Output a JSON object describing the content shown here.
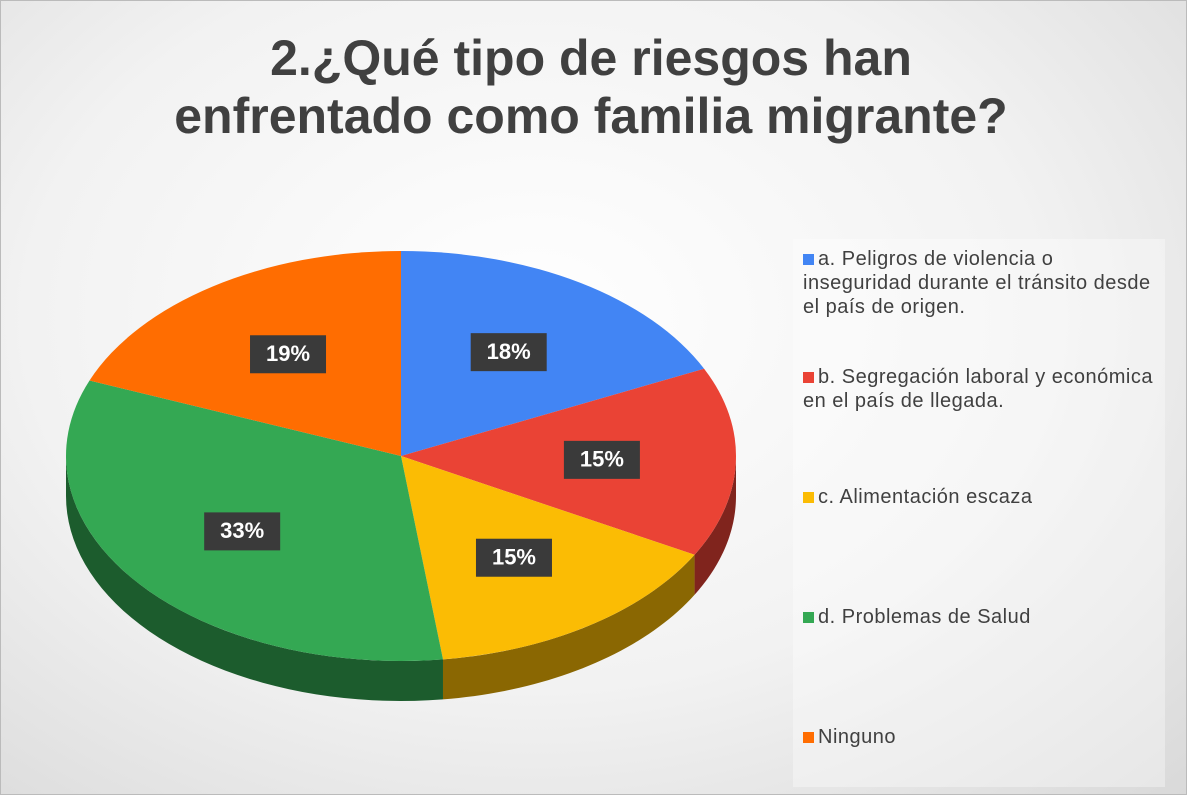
{
  "chart_data": {
    "type": "pie",
    "title": "2.¿Qué  tipo de riesgos han enfrentado como familia migrante?",
    "categories": [
      "a. Peligros de violencia o inseguridad durante el tránsito desde el país de origen.",
      "b. Segregación laboral y económica en el país de llegada.",
      "c.  Alimentación escaza",
      "d.  Problemas de Salud",
      "Ninguno"
    ],
    "values": [
      18,
      15,
      15,
      33,
      19
    ],
    "value_labels": [
      "18%",
      "15%",
      "15%",
      "33%",
      "19%"
    ],
    "colors": [
      "#4285f4",
      "#ea4335",
      "#fbbc04",
      "#34a853",
      "#ff6d01"
    ],
    "legend": "right"
  }
}
